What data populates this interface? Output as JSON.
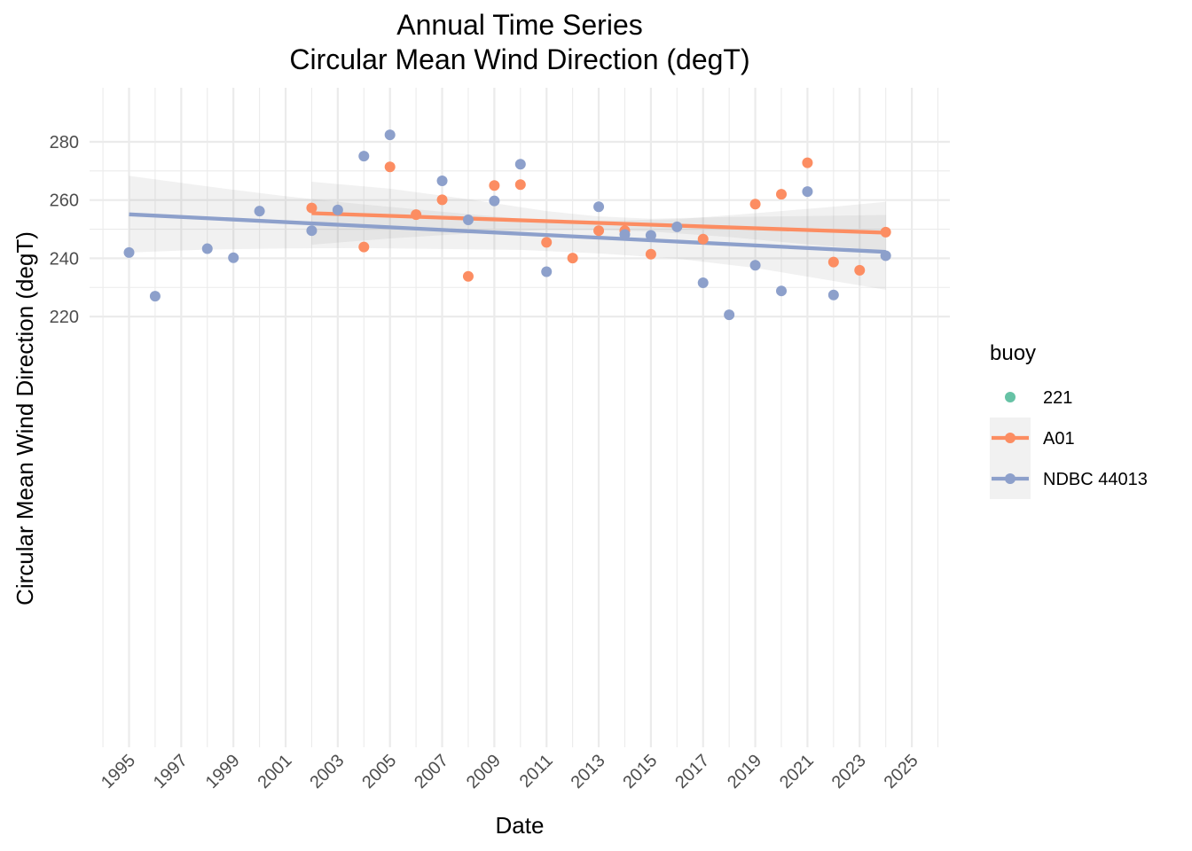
{
  "chart_data": {
    "type": "scatter",
    "title": [
      "Annual Time Series",
      "Circular Mean Wind Direction (degT)"
    ],
    "xlabel": "Date",
    "ylabel": "Circular Mean Wind Direction (degT)",
    "xlim": [
      1994,
      2026
    ],
    "ylim": [
      218,
      285
    ],
    "x_ticks": [
      "1995",
      "1997",
      "1999",
      "2001",
      "2003",
      "2005",
      "2007",
      "2009",
      "2011",
      "2013",
      "2015",
      "2017",
      "2019",
      "2021",
      "2023",
      "2025"
    ],
    "y_ticks": [
      220,
      240,
      260,
      280
    ],
    "grid": true,
    "legend": {
      "title": "buoy",
      "position": "right"
    },
    "series": [
      {
        "name": "221",
        "color": "#66c2a5",
        "points": []
      },
      {
        "name": "A01",
        "color": "#fc8d62",
        "points": [
          {
            "x": 2002.0,
            "y": 257.3
          },
          {
            "x": 2004.0,
            "y": 243.9
          },
          {
            "x": 2005.0,
            "y": 271.4
          },
          {
            "x": 2006.0,
            "y": 255.0
          },
          {
            "x": 2007.0,
            "y": 260.1
          },
          {
            "x": 2008.0,
            "y": 233.8
          },
          {
            "x": 2009.0,
            "y": 265.0
          },
          {
            "x": 2010.0,
            "y": 265.3
          },
          {
            "x": 2011.0,
            "y": 245.5
          },
          {
            "x": 2012.0,
            "y": 240.1
          },
          {
            "x": 2013.0,
            "y": 249.5
          },
          {
            "x": 2014.0,
            "y": 249.5
          },
          {
            "x": 2015.0,
            "y": 241.4
          },
          {
            "x": 2017.0,
            "y": 246.6
          },
          {
            "x": 2019.0,
            "y": 258.6
          },
          {
            "x": 2020.0,
            "y": 262.0
          },
          {
            "x": 2021.0,
            "y": 272.8
          },
          {
            "x": 2022.0,
            "y": 238.7
          },
          {
            "x": 2023.0,
            "y": 235.9
          },
          {
            "x": 2024.0,
            "y": 249.0
          }
        ],
        "trend": {
          "x": [
            2002.0,
            2024.0
          ],
          "y": [
            255.5,
            248.8
          ]
        },
        "band": {
          "x": [
            2002.0,
            2005.0,
            2008.0,
            2011.0,
            2013.0,
            2015.0,
            2018.0,
            2021.0,
            2024.0
          ],
          "lower": [
            244.7,
            246.8,
            248.5,
            249.7,
            249.7,
            249.2,
            247.3,
            244.8,
            242.6
          ],
          "upper": [
            266.3,
            263.9,
            260.3,
            256.2,
            254.4,
            253.6,
            254.2,
            254.5,
            254.9
          ]
        }
      },
      {
        "name": "NDBC 44013",
        "color": "#8da0cb",
        "points": [
          {
            "x": 1995.0,
            "y": 242.0
          },
          {
            "x": 1996.0,
            "y": 227.0
          },
          {
            "x": 1998.0,
            "y": 243.3
          },
          {
            "x": 1999.0,
            "y": 240.2
          },
          {
            "x": 2000.0,
            "y": 256.2
          },
          {
            "x": 2002.0,
            "y": 249.5
          },
          {
            "x": 2003.0,
            "y": 256.6
          },
          {
            "x": 2004.0,
            "y": 275.1
          },
          {
            "x": 2005.0,
            "y": 282.4
          },
          {
            "x": 2007.0,
            "y": 266.6
          },
          {
            "x": 2008.0,
            "y": 253.2
          },
          {
            "x": 2009.0,
            "y": 259.7
          },
          {
            "x": 2010.0,
            "y": 272.3
          },
          {
            "x": 2011.0,
            "y": 235.4
          },
          {
            "x": 2013.0,
            "y": 257.7
          },
          {
            "x": 2014.0,
            "y": 248.2
          },
          {
            "x": 2015.0,
            "y": 247.9
          },
          {
            "x": 2016.0,
            "y": 250.8
          },
          {
            "x": 2017.0,
            "y": 231.6
          },
          {
            "x": 2018.0,
            "y": 220.6
          },
          {
            "x": 2019.0,
            "y": 237.6
          },
          {
            "x": 2020.0,
            "y": 228.8
          },
          {
            "x": 2021.0,
            "y": 262.9
          },
          {
            "x": 2022.0,
            "y": 227.4
          },
          {
            "x": 2024.0,
            "y": 240.9
          }
        ],
        "trend": {
          "x": [
            1995.0,
            2024.0
          ],
          "y": [
            255.1,
            242.2
          ]
        },
        "band": {
          "x": [
            1995.0,
            1998.0,
            2001.0,
            2004.0,
            2007.0,
            2010.0,
            2013.0,
            2016.0,
            2019.0,
            2022.0,
            2024.0
          ],
          "lower": [
            242.0,
            243.0,
            243.4,
            243.5,
            243.2,
            242.9,
            241.7,
            239.9,
            236.7,
            232.2,
            229.2
          ],
          "upper": [
            268.3,
            264.7,
            261.3,
            258.5,
            256.0,
            253.6,
            252.9,
            253.4,
            255.5,
            257.7,
            259.4
          ]
        }
      }
    ]
  }
}
